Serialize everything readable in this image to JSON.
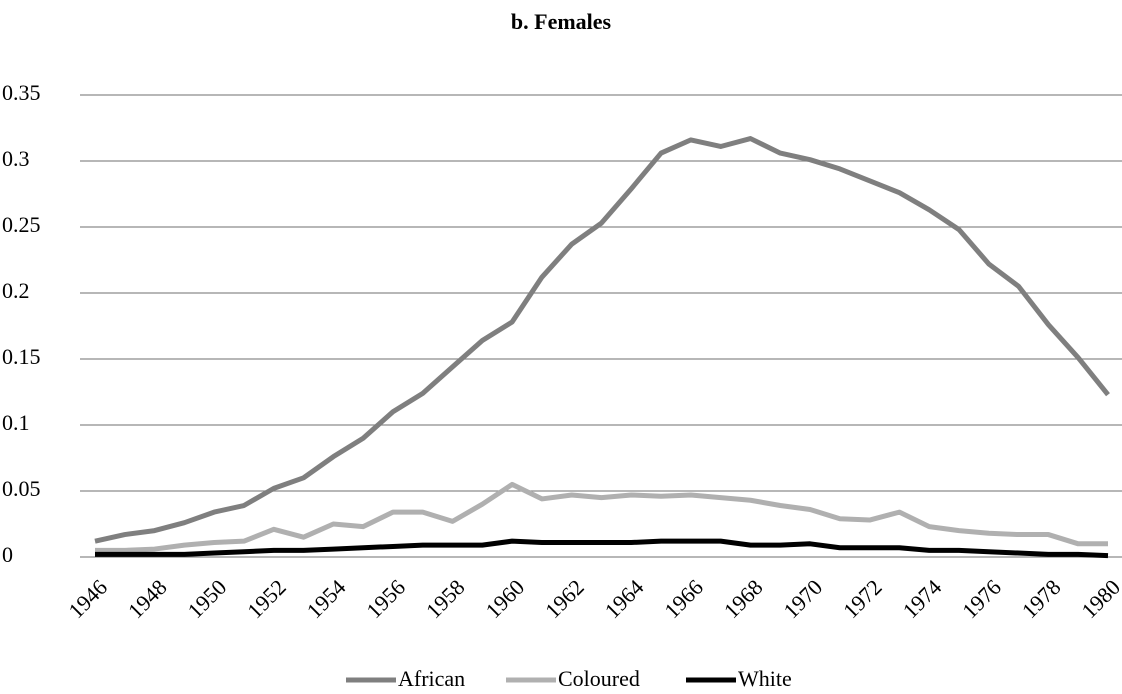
{
  "chart_data": {
    "type": "line",
    "title": "b. Females",
    "categories": [
      "1946",
      null,
      "1948",
      null,
      "1950",
      null,
      "1952",
      null,
      "1954",
      null,
      "1956",
      null,
      "1958",
      null,
      "1960",
      null,
      "1962",
      null,
      "1964",
      null,
      "1966",
      null,
      "1968",
      null,
      "1970",
      null,
      "1972",
      null,
      "1974",
      null,
      "1976",
      null,
      "1978",
      null,
      "1980"
    ],
    "series": [
      {
        "name": "African",
        "color": "#7f7f7f",
        "values": [
          0.012,
          0.017,
          0.02,
          0.026,
          0.034,
          0.039,
          0.052,
          0.06,
          0.076,
          0.09,
          0.11,
          0.124,
          0.144,
          0.164,
          0.178,
          0.212,
          0.237,
          0.253,
          0.279,
          0.306,
          0.316,
          0.311,
          0.317,
          0.306,
          0.301,
          0.294,
          0.285,
          0.276,
          0.263,
          0.248,
          0.222,
          0.205,
          0.176,
          0.151,
          0.123
        ]
      },
      {
        "name": "Coloured",
        "color": "#b0b0b0",
        "values": [
          0.005,
          0.005,
          0.006,
          0.009,
          0.011,
          0.012,
          0.021,
          0.015,
          0.025,
          0.023,
          0.034,
          0.034,
          0.027,
          0.04,
          0.055,
          0.044,
          0.047,
          0.045,
          0.047,
          0.046,
          0.047,
          0.045,
          0.043,
          0.039,
          0.036,
          0.029,
          0.028,
          0.034,
          0.023,
          0.02,
          0.018,
          0.017,
          0.017,
          0.01,
          0.01
        ]
      },
      {
        "name": "White",
        "color": "#000000",
        "values": [
          0.002,
          0.002,
          0.002,
          0.002,
          0.003,
          0.004,
          0.005,
          0.005,
          0.006,
          0.007,
          0.008,
          0.009,
          0.009,
          0.009,
          0.012,
          0.011,
          0.011,
          0.011,
          0.011,
          0.012,
          0.012,
          0.012,
          0.009,
          0.009,
          0.01,
          0.007,
          0.007,
          0.007,
          0.005,
          0.005,
          0.004,
          0.003,
          0.002,
          0.002,
          0.001
        ]
      }
    ],
    "ylim": [
      0,
      0.35
    ],
    "yticks": [
      0,
      0.05,
      0.1,
      0.15,
      0.2,
      0.25,
      0.3,
      0.35
    ],
    "grid": true,
    "legend": "bottom"
  }
}
